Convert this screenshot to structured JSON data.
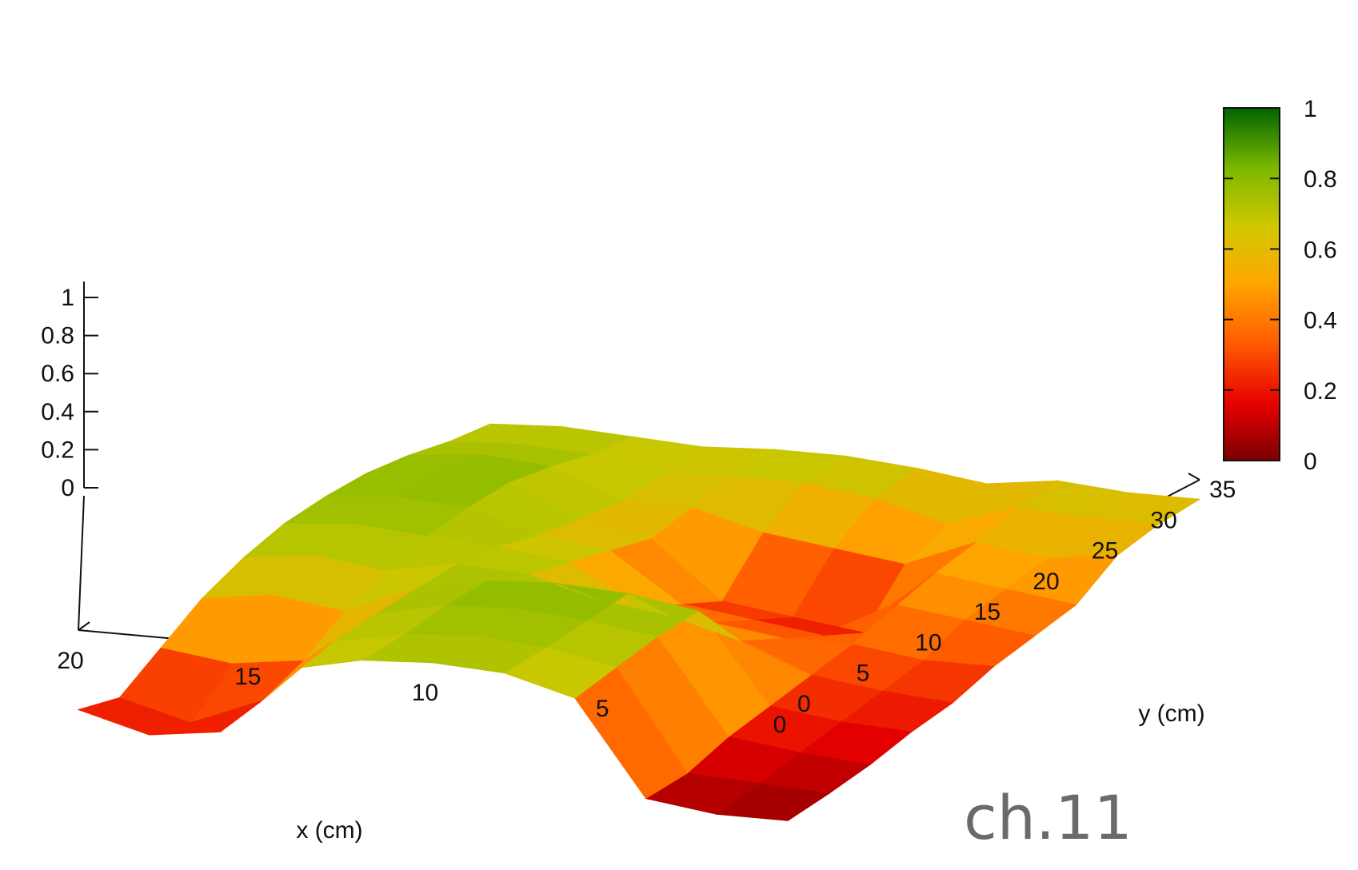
{
  "chart_data": {
    "type": "surface3d",
    "title": "",
    "xlabel": "x (cm)",
    "ylabel": "y (cm)",
    "zlabel": "",
    "xlim": [
      0,
      20
    ],
    "ylim": [
      0,
      35
    ],
    "zlim": [
      0,
      1
    ],
    "x_ticks": [
      "0",
      "5",
      "10",
      "15",
      "20"
    ],
    "y_ticks": [
      "0",
      "5",
      "10",
      "15",
      "20",
      "25",
      "30",
      "35"
    ],
    "z_ticks": [
      "0",
      "0.2",
      "0.4",
      "0.6",
      "0.8",
      "1"
    ],
    "colorbar_ticks": [
      "0",
      "0.2",
      "0.4",
      "0.6",
      "0.8",
      "1"
    ],
    "colorbar_range": [
      0,
      1
    ],
    "colormap": [
      "#7a0000",
      "#e60000",
      "#ff5a00",
      "#ffa500",
      "#c8c800",
      "#7cb800",
      "#006400"
    ],
    "x": [
      0,
      2,
      4,
      6,
      8,
      10,
      12,
      14,
      16,
      18,
      20
    ],
    "y": [
      0,
      3.5,
      7,
      10.5,
      14,
      17.5,
      21,
      24.5,
      28,
      31.5,
      35
    ],
    "z": [
      [
        0.05,
        0.08,
        0.12,
        0.18,
        0.22,
        0.3,
        0.35,
        0.4,
        0.55,
        0.6,
        0.62
      ],
      [
        0.05,
        0.1,
        0.15,
        0.2,
        0.25,
        0.3,
        0.4,
        0.45,
        0.5,
        0.6,
        0.62
      ],
      [
        0.1,
        0.12,
        0.2,
        0.25,
        0.3,
        0.35,
        0.45,
        0.5,
        0.55,
        0.62,
        0.65
      ],
      [
        0.6,
        0.65,
        0.7,
        0.72,
        0.45,
        0.35,
        0.25,
        0.15,
        0.4,
        0.5,
        0.6
      ],
      [
        0.7,
        0.72,
        0.75,
        0.78,
        0.55,
        0.4,
        0.3,
        0.2,
        0.45,
        0.6,
        0.65
      ],
      [
        0.72,
        0.75,
        0.78,
        0.8,
        0.6,
        0.45,
        0.35,
        0.25,
        0.5,
        0.65,
        0.68
      ],
      [
        0.7,
        0.72,
        0.76,
        0.78,
        0.7,
        0.65,
        0.6,
        0.55,
        0.6,
        0.65,
        0.68
      ],
      [
        0.62,
        0.65,
        0.68,
        0.7,
        0.72,
        0.7,
        0.65,
        0.62,
        0.6,
        0.62,
        0.66
      ],
      [
        0.25,
        0.3,
        0.4,
        0.55,
        0.65,
        0.72,
        0.76,
        0.78,
        0.75,
        0.7,
        0.68
      ],
      [
        0.2,
        0.15,
        0.35,
        0.6,
        0.7,
        0.75,
        0.78,
        0.8,
        0.78,
        0.72,
        0.7
      ],
      [
        0.3,
        0.25,
        0.4,
        0.55,
        0.65,
        0.72,
        0.75,
        0.76,
        0.74,
        0.7,
        0.68
      ]
    ]
  },
  "watermark": "ch.11",
  "title_text": "",
  "colors": {
    "title": "#e8002a",
    "watermark": "#6a6a6a",
    "axis": "#111111"
  }
}
